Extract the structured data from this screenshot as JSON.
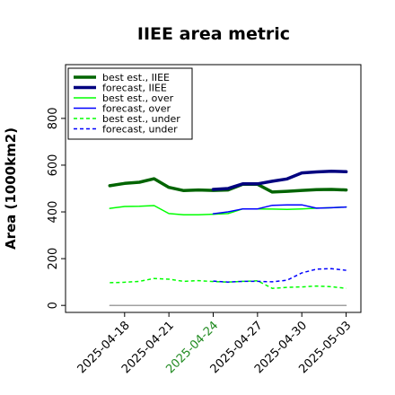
{
  "chart_data": {
    "type": "line",
    "title": "IIEE area metric",
    "ylabel": "Area (1000km2)",
    "xlabel": "",
    "ylim": [
      -30,
      1030
    ],
    "yticks": [
      0,
      200,
      400,
      600,
      800
    ],
    "xlim": [
      "2025-04-14",
      "2025-05-04"
    ],
    "xticks": [
      "2025-04-18",
      "2025-04-21",
      "2025-04-24",
      "2025-04-27",
      "2025-04-30",
      "2025-05-03"
    ],
    "xtick_highlight": "2025-04-24",
    "xtick_highlight_color": "#228b22",
    "legend_position": "upper-left",
    "series": [
      {
        "name": "best est., IIEE",
        "color": "#006400",
        "dash": "solid",
        "width": 3.5,
        "x": [
          "2025-04-17",
          "2025-04-18",
          "2025-04-19",
          "2025-04-20",
          "2025-04-21",
          "2025-04-22",
          "2025-04-23",
          "2025-04-24",
          "2025-04-25",
          "2025-04-26",
          "2025-04-27",
          "2025-04-28",
          "2025-04-29",
          "2025-04-30",
          "2025-05-01",
          "2025-05-02",
          "2025-05-03"
        ],
        "y": [
          512,
          522,
          527,
          542,
          505,
          491,
          494,
          492,
          494,
          518,
          518,
          485,
          488,
          492,
          495,
          496,
          494
        ]
      },
      {
        "name": "forecast, IIEE",
        "color": "#00007f",
        "dash": "solid",
        "width": 3.5,
        "x": [
          "2025-04-24",
          "2025-04-25",
          "2025-04-26",
          "2025-04-27",
          "2025-04-28",
          "2025-04-29",
          "2025-04-30",
          "2025-05-01",
          "2025-05-02",
          "2025-05-03"
        ],
        "y": [
          496,
          500,
          520,
          520,
          531,
          541,
          567,
          571,
          574,
          572
        ]
      },
      {
        "name": "best est., over",
        "color": "#00ff00",
        "dash": "solid",
        "width": 1.5,
        "x": [
          "2025-04-17",
          "2025-04-18",
          "2025-04-19",
          "2025-04-20",
          "2025-04-21",
          "2025-04-22",
          "2025-04-23",
          "2025-04-24",
          "2025-04-25",
          "2025-04-26",
          "2025-04-27",
          "2025-04-28",
          "2025-04-29",
          "2025-04-30",
          "2025-05-01",
          "2025-05-02",
          "2025-05-03"
        ],
        "y": [
          415,
          423,
          424,
          427,
          393,
          388,
          388,
          390,
          393,
          413,
          413,
          412,
          411,
          413,
          416,
          418,
          421
        ]
      },
      {
        "name": "forecast, over",
        "color": "#0000ff",
        "dash": "solid",
        "width": 1.5,
        "x": [
          "2025-04-24",
          "2025-04-25",
          "2025-04-26",
          "2025-04-27",
          "2025-04-28",
          "2025-04-29",
          "2025-04-30",
          "2025-05-01",
          "2025-05-02",
          "2025-05-03"
        ],
        "y": [
          392,
          400,
          413,
          413,
          428,
          430,
          430,
          416,
          418,
          421
        ]
      },
      {
        "name": "best est., under",
        "color": "#00ff00",
        "dash": "dashed",
        "width": 1.5,
        "x": [
          "2025-04-17",
          "2025-04-18",
          "2025-04-19",
          "2025-04-20",
          "2025-04-21",
          "2025-04-22",
          "2025-04-23",
          "2025-04-24",
          "2025-04-25",
          "2025-04-26",
          "2025-04-27",
          "2025-04-28",
          "2025-04-29",
          "2025-04-30",
          "2025-05-01",
          "2025-05-02",
          "2025-05-03"
        ],
        "y": [
          97,
          99,
          103,
          115,
          112,
          103,
          106,
          102,
          100,
          103,
          105,
          73,
          77,
          79,
          83,
          80,
          73
        ]
      },
      {
        "name": "forecast, under",
        "color": "#0000ff",
        "dash": "dashed",
        "width": 1.5,
        "x": [
          "2025-04-24",
          "2025-04-25",
          "2025-04-26",
          "2025-04-27",
          "2025-04-28",
          "2025-04-29",
          "2025-04-30",
          "2025-05-01",
          "2025-05-02",
          "2025-05-03"
        ],
        "y": [
          104,
          100,
          103,
          103,
          101,
          108,
          139,
          155,
          157,
          150
        ]
      },
      {
        "name": "",
        "color": "#808080",
        "dash": "solid",
        "width": 1.2,
        "x": [
          "2025-04-17",
          "2025-05-03"
        ],
        "y": [
          0,
          0
        ]
      }
    ]
  }
}
